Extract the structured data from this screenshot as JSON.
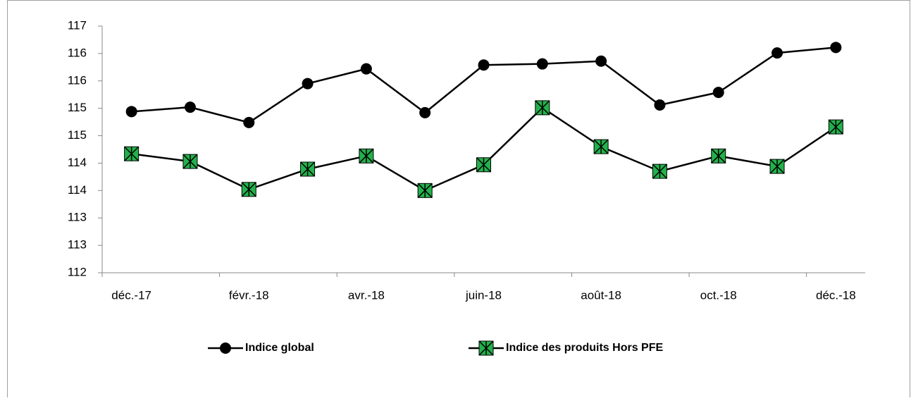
{
  "chart_data": {
    "type": "line",
    "categories": [
      "déc.-17",
      null,
      "févr.-18",
      null,
      "avr.-18",
      null,
      "juin-18",
      null,
      "août-18",
      null,
      "oct.-18",
      null,
      "déc.-18"
    ],
    "series": [
      {
        "name": "Indice global",
        "color": "#000000",
        "marker": "circle",
        "values": [
          114.94,
          115.02,
          114.74,
          115.45,
          115.72,
          114.92,
          115.79,
          115.81,
          115.86,
          115.06,
          115.29,
          116.01,
          116.11
        ]
      },
      {
        "name": "Indice des produits Hors PFE",
        "color": "#000000",
        "marker_color": "#22b14c",
        "marker": "square-x",
        "values": [
          114.17,
          114.03,
          113.52,
          113.89,
          114.13,
          113.5,
          113.97,
          115.01,
          114.3,
          113.85,
          114.13,
          113.94,
          114.66
        ]
      }
    ],
    "ylim": [
      112,
      116.5
    ],
    "yticks": [
      112,
      {
        "value": 112.5,
        "label": "113"
      },
      113,
      {
        "value": 113.5,
        "label": "114"
      },
      114,
      {
        "value": 114.5,
        "label": "115"
      },
      115,
      {
        "value": 115.5,
        "label": "116"
      },
      116,
      {
        "value": 116.5,
        "label": "117"
      }
    ],
    "grid": false,
    "legend": "bottom"
  }
}
